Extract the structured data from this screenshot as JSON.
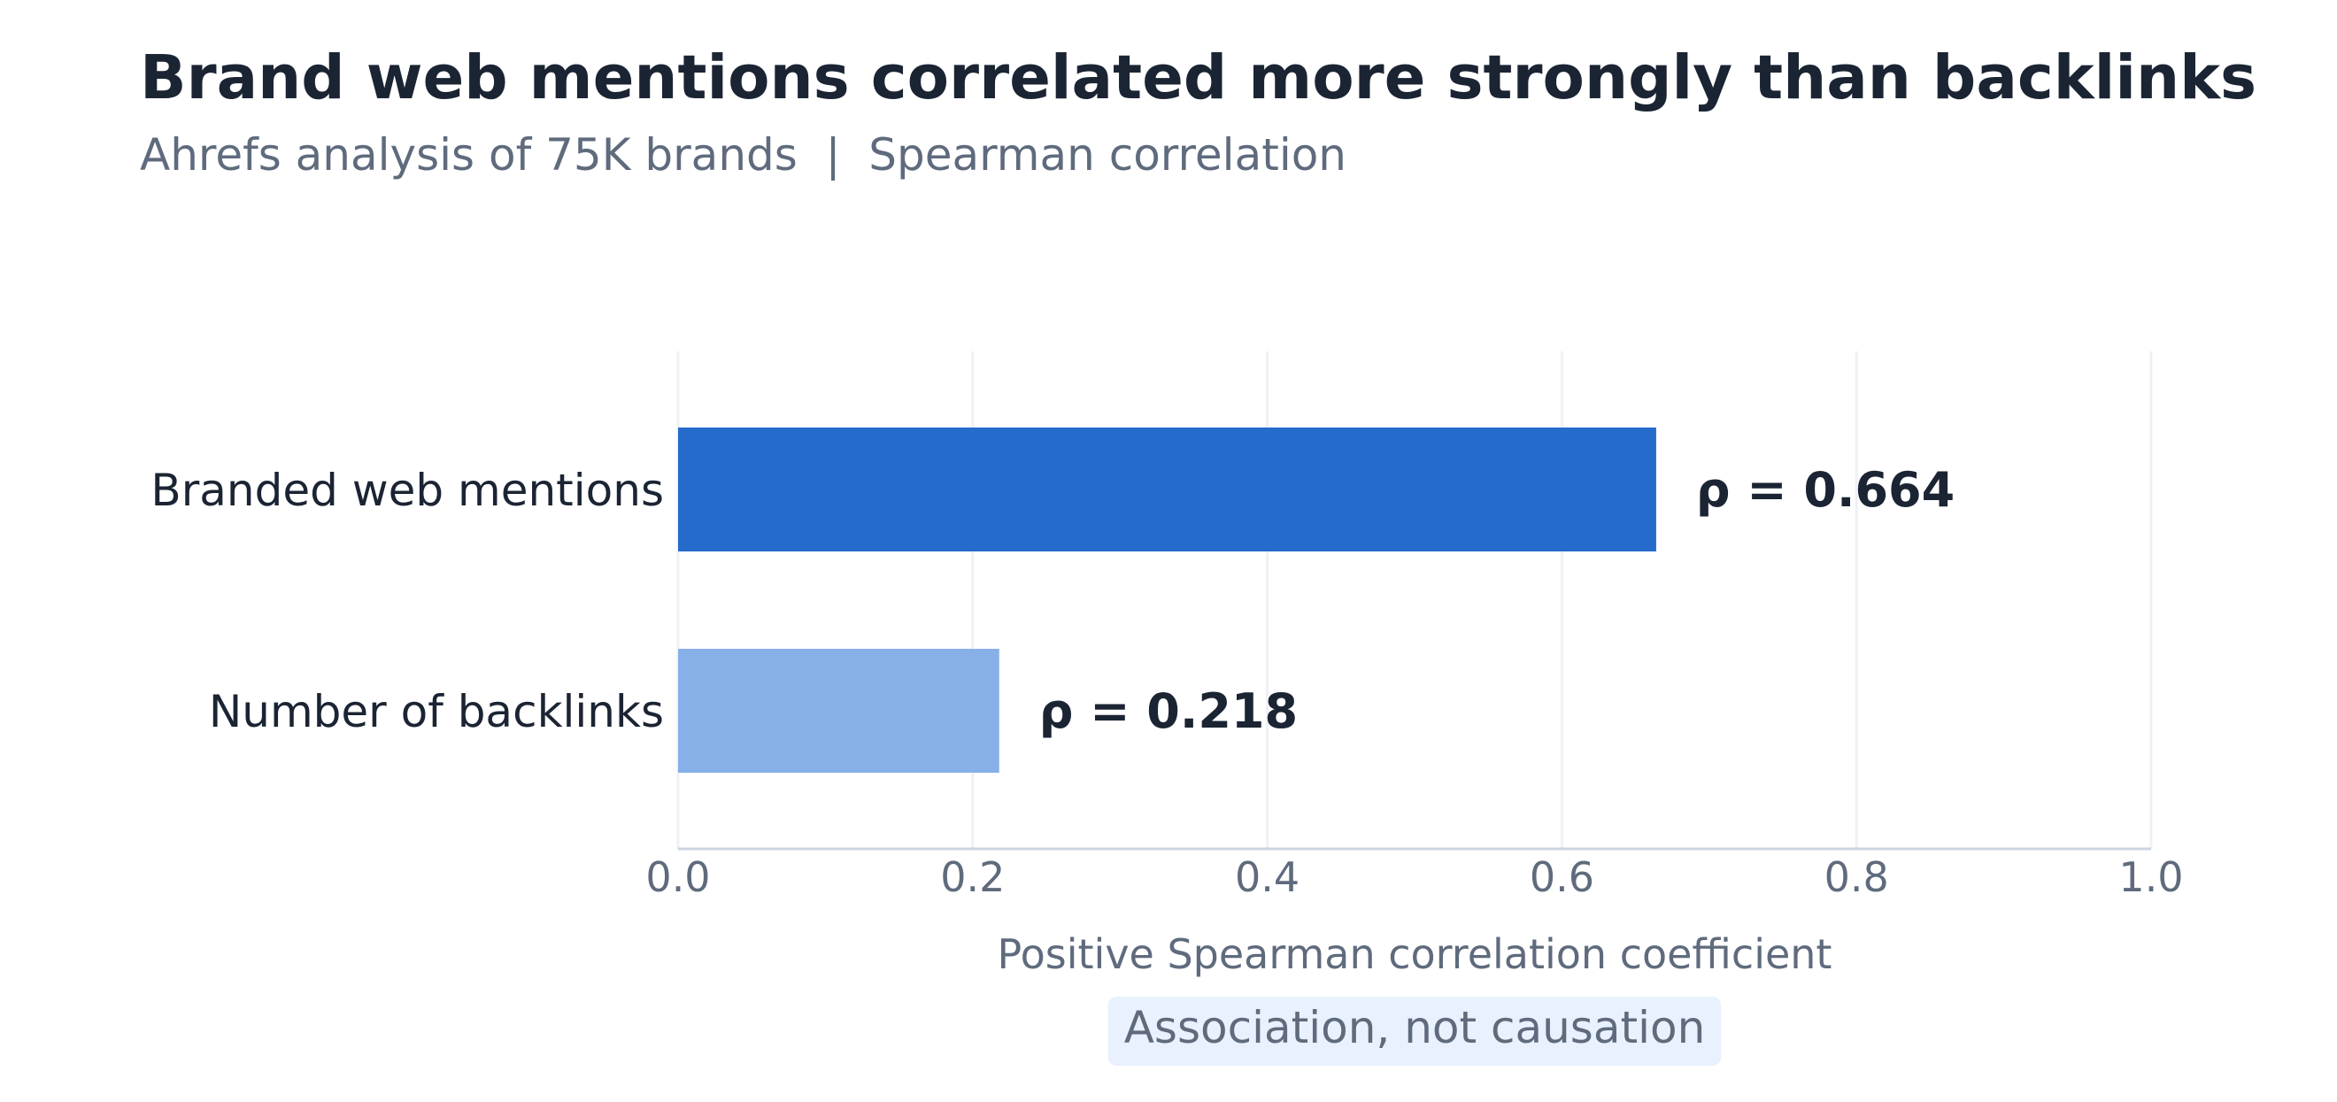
{
  "chart_data": {
    "type": "bar",
    "orientation": "horizontal",
    "title": "Brand web mentions correlated more strongly than backlinks",
    "subtitle": "Ahrefs analysis of 75K brands  |  Spearman correlation",
    "categories": [
      "Branded web mentions",
      "Number of backlinks"
    ],
    "values": [
      0.664,
      0.218
    ],
    "data_labels": [
      "ρ = 0.664",
      "ρ = 0.218"
    ],
    "bar_colors": [
      "#246bcc",
      "#87b0e8"
    ],
    "xlabel": "Positive Spearman correlation coefficient",
    "ylabel": "",
    "xlim": [
      0,
      1.0
    ],
    "x_ticks": [
      0.0,
      0.2,
      0.4,
      0.6,
      0.8,
      1.0
    ],
    "x_tick_labels": [
      "0.0",
      "0.2",
      "0.4",
      "0.6",
      "0.8",
      "1.0"
    ],
    "grid": true,
    "legend": "none",
    "note": "Association, not causation",
    "colors": {
      "title": "#1b2433",
      "muted_text": "#5f6b7d",
      "grid": "#eef1f5",
      "axis": "#cbd4df",
      "note_background": "#e8f1fd"
    }
  }
}
